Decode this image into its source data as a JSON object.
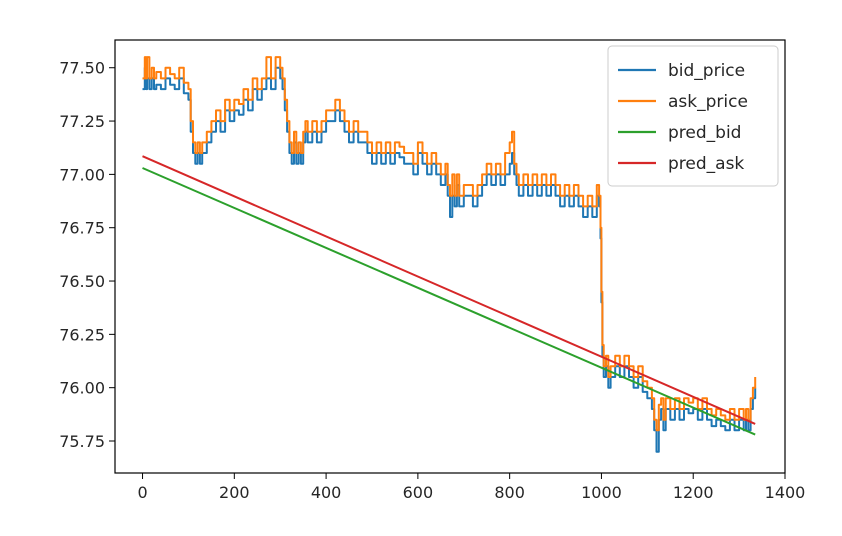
{
  "chart_data": {
    "type": "line",
    "title": "",
    "xlabel": "",
    "ylabel": "",
    "xlim": [
      -60,
      1400
    ],
    "ylim": [
      75.6,
      77.63
    ],
    "xticks": [
      0,
      200,
      400,
      600,
      800,
      1000,
      1200,
      1400
    ],
    "yticks": [
      75.75,
      76.0,
      76.25,
      76.5,
      76.75,
      77.0,
      77.25,
      77.5
    ],
    "xtick_labels": [
      "0",
      "200",
      "400",
      "600",
      "800",
      "1000",
      "1200",
      "1400"
    ],
    "ytick_labels": [
      "75.75",
      "76.00",
      "76.25",
      "76.50",
      "76.75",
      "77.00",
      "77.25",
      "77.50"
    ],
    "grid": false,
    "legend_position": "top-right",
    "series": [
      {
        "name": "bid_price",
        "color": "#1f77b4",
        "x": [
          0,
          5,
          8,
          10,
          15,
          20,
          25,
          30,
          40,
          50,
          60,
          70,
          80,
          90,
          100,
          105,
          110,
          115,
          120,
          125,
          130,
          140,
          150,
          160,
          170,
          180,
          190,
          200,
          210,
          220,
          230,
          240,
          250,
          260,
          270,
          280,
          290,
          300,
          305,
          310,
          315,
          320,
          325,
          330,
          335,
          340,
          345,
          350,
          355,
          360,
          370,
          380,
          390,
          400,
          410,
          420,
          430,
          440,
          450,
          460,
          470,
          480,
          490,
          500,
          510,
          520,
          530,
          540,
          550,
          560,
          570,
          580,
          590,
          600,
          610,
          620,
          630,
          640,
          650,
          660,
          665,
          670,
          675,
          680,
          685,
          690,
          700,
          710,
          720,
          730,
          740,
          750,
          760,
          770,
          780,
          790,
          800,
          805,
          810,
          815,
          820,
          830,
          840,
          850,
          860,
          870,
          880,
          890,
          900,
          910,
          920,
          930,
          940,
          950,
          960,
          970,
          980,
          990,
          995,
          998,
          1000,
          1002,
          1005,
          1010,
          1015,
          1020,
          1030,
          1040,
          1050,
          1060,
          1070,
          1080,
          1090,
          1100,
          1110,
          1115,
          1120,
          1125,
          1130,
          1135,
          1140,
          1150,
          1160,
          1170,
          1180,
          1190,
          1200,
          1210,
          1220,
          1230,
          1240,
          1250,
          1260,
          1270,
          1280,
          1290,
          1300,
          1310,
          1315,
          1320,
          1325,
          1330,
          1335
        ],
        "y": [
          77.4,
          77.5,
          77.4,
          77.45,
          77.4,
          77.45,
          77.4,
          77.42,
          77.4,
          77.45,
          77.42,
          77.4,
          77.45,
          77.38,
          77.35,
          77.2,
          77.1,
          77.05,
          77.1,
          77.05,
          77.1,
          77.15,
          77.2,
          77.25,
          77.2,
          77.3,
          77.25,
          77.3,
          77.28,
          77.35,
          77.3,
          77.4,
          77.35,
          77.4,
          77.45,
          77.4,
          77.5,
          77.45,
          77.4,
          77.3,
          77.2,
          77.1,
          77.05,
          77.15,
          77.05,
          77.1,
          77.05,
          77.15,
          77.2,
          77.15,
          77.2,
          77.15,
          77.2,
          77.25,
          77.25,
          77.3,
          77.25,
          77.2,
          77.15,
          77.2,
          77.15,
          77.15,
          77.1,
          77.05,
          77.1,
          77.05,
          77.1,
          77.05,
          77.1,
          77.08,
          77.05,
          77.05,
          77.0,
          77.1,
          77.05,
          77.0,
          77.05,
          77.0,
          76.95,
          77.0,
          76.9,
          76.8,
          76.9,
          76.85,
          76.95,
          76.85,
          76.9,
          76.9,
          76.85,
          76.9,
          76.95,
          77.0,
          76.95,
          77.0,
          76.95,
          77.0,
          77.05,
          77.1,
          77.0,
          76.95,
          76.9,
          76.95,
          76.9,
          76.95,
          76.9,
          76.95,
          76.9,
          76.95,
          76.9,
          76.85,
          76.9,
          76.85,
          76.9,
          76.85,
          76.8,
          76.85,
          76.8,
          76.9,
          76.85,
          76.7,
          76.4,
          76.15,
          76.05,
          76.1,
          76.0,
          76.05,
          76.1,
          76.05,
          76.1,
          76.05,
          76.0,
          76.05,
          75.98,
          75.95,
          75.9,
          75.8,
          75.7,
          75.85,
          75.9,
          75.8,
          75.9,
          75.85,
          75.9,
          75.85,
          75.9,
          75.88,
          75.9,
          75.85,
          75.9,
          75.85,
          75.82,
          75.85,
          75.82,
          75.8,
          75.85,
          75.8,
          75.85,
          75.8,
          75.85,
          75.8,
          75.9,
          75.95,
          76.0
        ]
      },
      {
        "name": "ask_price",
        "color": "#ff7f0e",
        "x": [
          0,
          5,
          8,
          10,
          15,
          20,
          25,
          30,
          40,
          50,
          60,
          70,
          80,
          90,
          100,
          105,
          110,
          115,
          120,
          125,
          130,
          140,
          150,
          160,
          170,
          180,
          190,
          200,
          210,
          220,
          230,
          240,
          250,
          260,
          270,
          280,
          290,
          300,
          305,
          310,
          315,
          320,
          325,
          330,
          335,
          340,
          345,
          350,
          355,
          360,
          370,
          380,
          390,
          400,
          410,
          420,
          430,
          440,
          450,
          460,
          470,
          480,
          490,
          500,
          510,
          520,
          530,
          540,
          550,
          560,
          570,
          580,
          590,
          600,
          610,
          620,
          630,
          640,
          650,
          660,
          665,
          670,
          675,
          680,
          685,
          690,
          700,
          710,
          720,
          730,
          740,
          750,
          760,
          770,
          780,
          790,
          800,
          805,
          810,
          815,
          820,
          830,
          840,
          850,
          860,
          870,
          880,
          890,
          900,
          910,
          920,
          930,
          940,
          950,
          960,
          970,
          980,
          990,
          995,
          998,
          1000,
          1002,
          1005,
          1010,
          1015,
          1020,
          1030,
          1040,
          1050,
          1060,
          1070,
          1080,
          1090,
          1100,
          1110,
          1115,
          1120,
          1125,
          1130,
          1135,
          1140,
          1150,
          1160,
          1170,
          1180,
          1190,
          1200,
          1210,
          1220,
          1230,
          1240,
          1250,
          1260,
          1270,
          1280,
          1290,
          1300,
          1310,
          1315,
          1320,
          1325,
          1330,
          1335
        ],
        "y": [
          77.45,
          77.55,
          77.45,
          77.55,
          77.45,
          77.5,
          77.45,
          77.48,
          77.45,
          77.5,
          77.47,
          77.45,
          77.5,
          77.43,
          77.4,
          77.25,
          77.15,
          77.1,
          77.15,
          77.1,
          77.15,
          77.2,
          77.25,
          77.3,
          77.25,
          77.35,
          77.3,
          77.35,
          77.33,
          77.4,
          77.35,
          77.45,
          77.4,
          77.45,
          77.55,
          77.45,
          77.55,
          77.5,
          77.45,
          77.35,
          77.25,
          77.15,
          77.1,
          77.2,
          77.1,
          77.15,
          77.1,
          77.2,
          77.25,
          77.2,
          77.25,
          77.2,
          77.25,
          77.3,
          77.3,
          77.35,
          77.3,
          77.25,
          77.2,
          77.25,
          77.2,
          77.2,
          77.15,
          77.1,
          77.15,
          77.1,
          77.15,
          77.1,
          77.15,
          77.13,
          77.1,
          77.1,
          77.05,
          77.15,
          77.1,
          77.05,
          77.1,
          77.05,
          77.0,
          77.05,
          76.95,
          76.9,
          77.0,
          76.9,
          77.0,
          76.9,
          76.95,
          76.95,
          76.9,
          76.95,
          77.0,
          77.05,
          77.0,
          77.05,
          77.0,
          77.1,
          77.15,
          77.2,
          77.05,
          77.0,
          76.95,
          77.0,
          76.95,
          77.0,
          76.95,
          77.0,
          76.95,
          77.0,
          76.95,
          76.9,
          76.95,
          76.9,
          76.95,
          76.9,
          76.85,
          76.9,
          76.85,
          76.95,
          76.9,
          76.75,
          76.45,
          76.2,
          76.1,
          76.15,
          76.05,
          76.1,
          76.15,
          76.1,
          76.15,
          76.1,
          76.05,
          76.1,
          76.03,
          76.0,
          75.95,
          75.85,
          75.8,
          75.92,
          75.95,
          75.85,
          75.95,
          75.9,
          75.95,
          75.9,
          75.95,
          75.93,
          75.95,
          75.9,
          75.95,
          75.9,
          75.87,
          75.9,
          75.87,
          75.85,
          75.9,
          75.85,
          75.9,
          75.85,
          75.9,
          75.85,
          75.95,
          76.0,
          76.05
        ]
      },
      {
        "name": "pred_bid",
        "color": "#2ca02c",
        "x": [
          0,
          1335
        ],
        "y": [
          77.03,
          75.78
        ]
      },
      {
        "name": "pred_ask",
        "color": "#d62728",
        "x": [
          0,
          1335
        ],
        "y": [
          77.085,
          75.83
        ]
      }
    ]
  }
}
